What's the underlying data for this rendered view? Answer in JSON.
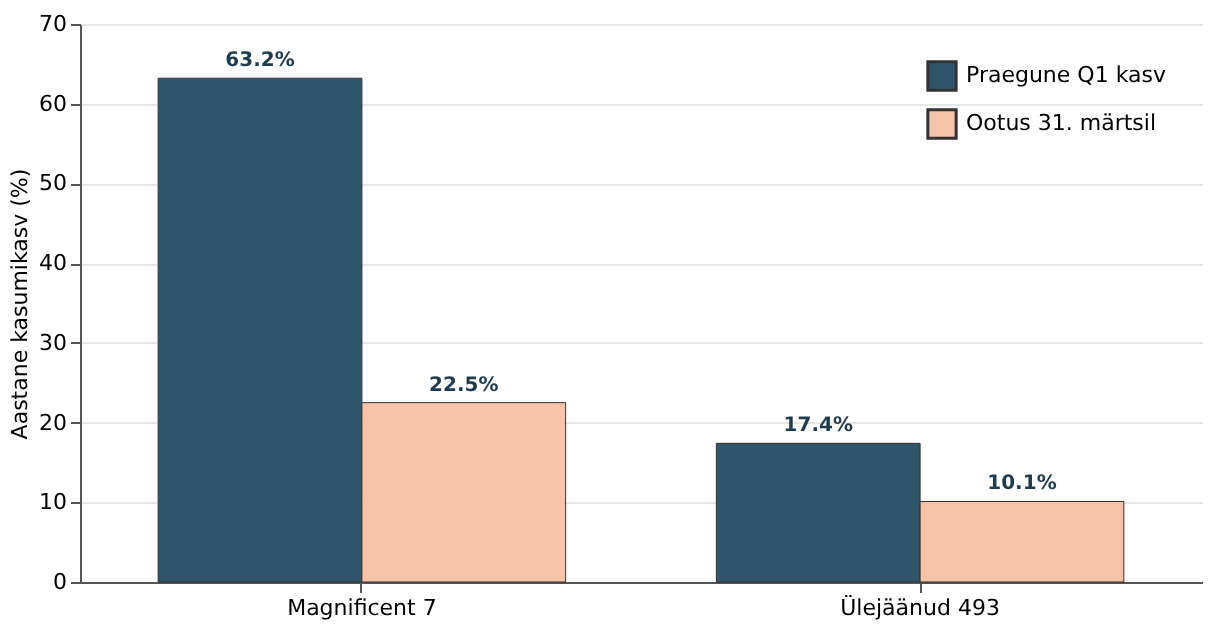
{
  "chart_data": {
    "type": "bar",
    "ylabel": "Aastane kasumikasv (%)",
    "categories": [
      "Magnificent 7",
      "Ülejäänud 493"
    ],
    "series": [
      {
        "name": "Praegune Q1 kasv",
        "color": "#2e5569",
        "values": [
          63.2,
          17.4
        ],
        "value_labels": [
          "63.2%",
          "17.4%"
        ]
      },
      {
        "name": "Ootus 31. märtsil",
        "color": "#f6c2a8",
        "values": [
          22.5,
          10.1
        ],
        "value_labels": [
          "22.5%",
          "10.1%"
        ]
      }
    ],
    "ylim": [
      0,
      70
    ],
    "yticks": [
      0,
      10,
      20,
      30,
      40,
      50,
      60,
      70
    ],
    "grid": "y",
    "legend": "top right"
  }
}
